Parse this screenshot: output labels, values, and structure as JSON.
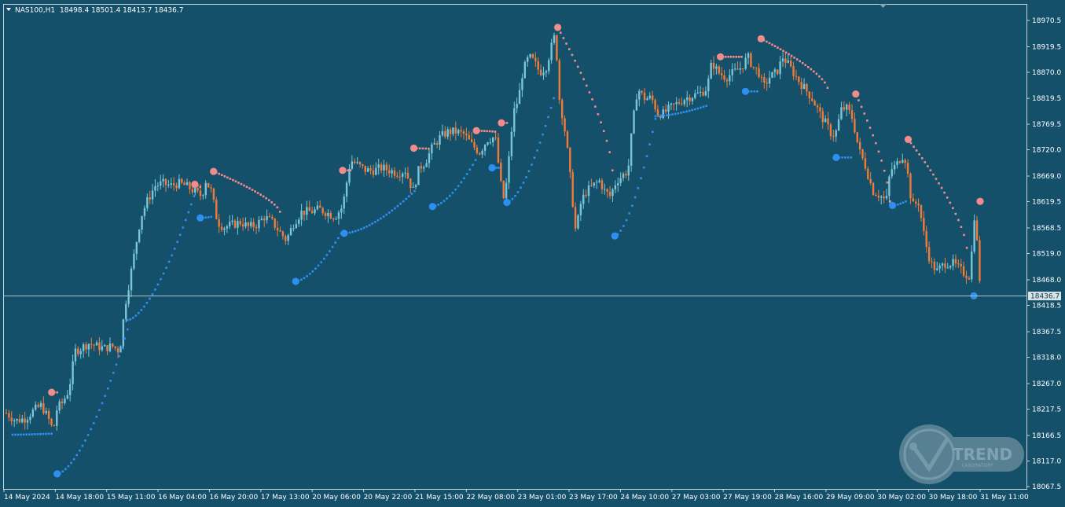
{
  "header": {
    "symbol": "NAS100,H1",
    "ohlc": "18498.4 18501.4 18413.7 18436.7"
  },
  "logo": {
    "main": "TREND",
    "sub": "LABORATORY"
  },
  "colors": {
    "background": "#14506a",
    "bull_candle": "#7ac6d8",
    "bear_candle": "#f27b3a",
    "sar_bull": "#2f8ff0",
    "sar_bear": "#f08c8c",
    "grid_text": "#ffffff",
    "price_line": "#a9c3cc",
    "price_tag_bg": "#d6e2e6"
  },
  "chart_data": {
    "type": "candlestick",
    "title": "NAS100,H1",
    "indicator": "Parabolic SAR",
    "ylim": [
      18067.5,
      18970.5
    ],
    "y_ticks": [
      "18970.5",
      "18919.5",
      "18870.0",
      "18819.5",
      "18769.5",
      "18720.0",
      "18669.0",
      "18619.5",
      "18568.5",
      "18519.0",
      "18468.0",
      "18418.5",
      "18367.5",
      "18318.0",
      "18267.0",
      "18217.5",
      "18166.5",
      "18117.0",
      "18067.5"
    ],
    "x_ticks": [
      "14 May 2024",
      "14 May 18:00",
      "15 May 11:00",
      "16 May 04:00",
      "16 May 20:00",
      "17 May 13:00",
      "20 May 06:00",
      "20 May 22:00",
      "21 May 15:00",
      "22 May 08:00",
      "23 May 01:00",
      "23 May 17:00",
      "24 May 10:00",
      "27 May 03:00",
      "27 May 19:00",
      "28 May 16:00",
      "29 May 09:00",
      "30 May 02:00",
      "30 May 18:00",
      "31 May 11:00"
    ],
    "current_price": "18436.7",
    "close_path": [
      [
        0,
        18210
      ],
      [
        12,
        18195
      ],
      [
        25,
        18200
      ],
      [
        35,
        18215
      ],
      [
        45,
        18225
      ],
      [
        55,
        18195
      ],
      [
        60,
        18175
      ],
      [
        65,
        18220
      ],
      [
        72,
        18230
      ],
      [
        80,
        18255
      ],
      [
        88,
        18330
      ],
      [
        95,
        18335
      ],
      [
        105,
        18345
      ],
      [
        115,
        18340
      ],
      [
        125,
        18335
      ],
      [
        135,
        18340
      ],
      [
        145,
        18330
      ],
      [
        152,
        18420
      ],
      [
        158,
        18470
      ],
      [
        165,
        18530
      ],
      [
        172,
        18590
      ],
      [
        180,
        18620
      ],
      [
        190,
        18650
      ],
      [
        200,
        18655
      ],
      [
        210,
        18650
      ],
      [
        220,
        18655
      ],
      [
        230,
        18650
      ],
      [
        240,
        18640
      ],
      [
        250,
        18630
      ],
      [
        255,
        18660
      ],
      [
        262,
        18640
      ],
      [
        270,
        18580
      ],
      [
        278,
        18570
      ],
      [
        290,
        18575
      ],
      [
        300,
        18580
      ],
      [
        310,
        18570
      ],
      [
        320,
        18575
      ],
      [
        330,
        18590
      ],
      [
        340,
        18580
      ],
      [
        350,
        18560
      ],
      [
        358,
        18545
      ],
      [
        368,
        18580
      ],
      [
        378,
        18600
      ],
      [
        390,
        18600
      ],
      [
        400,
        18605
      ],
      [
        410,
        18598
      ],
      [
        420,
        18590
      ],
      [
        430,
        18610
      ],
      [
        440,
        18700
      ],
      [
        450,
        18690
      ],
      [
        460,
        18680
      ],
      [
        470,
        18680
      ],
      [
        480,
        18685
      ],
      [
        490,
        18680
      ],
      [
        500,
        18675
      ],
      [
        510,
        18680
      ],
      [
        520,
        18640
      ],
      [
        528,
        18685
      ],
      [
        535,
        18695
      ],
      [
        545,
        18725
      ],
      [
        555,
        18745
      ],
      [
        565,
        18755
      ],
      [
        575,
        18755
      ],
      [
        585,
        18750
      ],
      [
        595,
        18730
      ],
      [
        605,
        18715
      ],
      [
        615,
        18740
      ],
      [
        625,
        18745
      ],
      [
        635,
        18620
      ],
      [
        640,
        18660
      ],
      [
        648,
        18790
      ],
      [
        655,
        18820
      ],
      [
        660,
        18870
      ],
      [
        668,
        18900
      ],
      [
        675,
        18890
      ],
      [
        682,
        18870
      ],
      [
        690,
        18880
      ],
      [
        697,
        18920
      ],
      [
        702,
        18945
      ],
      [
        707,
        18820
      ],
      [
        713,
        18770
      ],
      [
        718,
        18710
      ],
      [
        722,
        18650
      ],
      [
        728,
        18560
      ],
      [
        735,
        18620
      ],
      [
        742,
        18640
      ],
      [
        750,
        18650
      ],
      [
        758,
        18660
      ],
      [
        765,
        18640
      ],
      [
        772,
        18630
      ],
      [
        780,
        18660
      ],
      [
        788,
        18670
      ],
      [
        795,
        18680
      ],
      [
        800,
        18760
      ],
      [
        807,
        18840
      ],
      [
        815,
        18820
      ],
      [
        825,
        18820
      ],
      [
        833,
        18790
      ],
      [
        840,
        18790
      ],
      [
        848,
        18800
      ],
      [
        858,
        18810
      ],
      [
        868,
        18820
      ],
      [
        878,
        18825
      ],
      [
        888,
        18830
      ],
      [
        896,
        18840
      ],
      [
        902,
        18890
      ],
      [
        910,
        18870
      ],
      [
        920,
        18860
      ],
      [
        930,
        18870
      ],
      [
        940,
        18880
      ],
      [
        948,
        18900
      ],
      [
        955,
        18880
      ],
      [
        962,
        18870
      ],
      [
        968,
        18840
      ],
      [
        975,
        18860
      ],
      [
        985,
        18870
      ],
      [
        993,
        18900
      ],
      [
        1002,
        18880
      ],
      [
        1010,
        18860
      ],
      [
        1020,
        18840
      ],
      [
        1030,
        18820
      ],
      [
        1040,
        18790
      ],
      [
        1048,
        18770
      ],
      [
        1055,
        18750
      ],
      [
        1060,
        18750
      ],
      [
        1068,
        18800
      ],
      [
        1075,
        18800
      ],
      [
        1082,
        18780
      ],
      [
        1090,
        18720
      ],
      [
        1098,
        18690
      ],
      [
        1108,
        18640
      ],
      [
        1118,
        18630
      ],
      [
        1125,
        18620
      ],
      [
        1130,
        18680
      ],
      [
        1138,
        18690
      ],
      [
        1145,
        18710
      ],
      [
        1150,
        18700
      ],
      [
        1158,
        18610
      ],
      [
        1166,
        18620
      ],
      [
        1175,
        18540
      ],
      [
        1182,
        18500
      ],
      [
        1190,
        18485
      ],
      [
        1200,
        18500
      ],
      [
        1210,
        18500
      ],
      [
        1218,
        18490
      ],
      [
        1225,
        18480
      ],
      [
        1232,
        18475
      ],
      [
        1238,
        18600
      ],
      [
        1242,
        18520
      ],
      [
        1246,
        18436.7
      ]
    ],
    "sar_segments": [
      {
        "dir": "up",
        "start": [
          8,
          18168
        ],
        "end": [
          58,
          18170
        ],
        "start_big": false
      },
      {
        "dir": "down",
        "start": [
          58,
          18250
        ],
        "end": [
          65,
          18250
        ],
        "start_big": true
      },
      {
        "dir": "up",
        "start": [
          65,
          18092
        ],
        "end": [
          155,
          18372
        ],
        "start_big": true
      },
      {
        "dir": "up",
        "start": [
          155,
          18390
        ],
        "end": [
          240,
          18630
        ],
        "start_big": false
      },
      {
        "dir": "down",
        "start": [
          241,
          18653
        ],
        "end": [
          248,
          18648
        ],
        "start_big": true
      },
      {
        "dir": "up",
        "start": [
          248,
          18588
        ],
        "end": [
          262,
          18590
        ],
        "start_big": true
      },
      {
        "dir": "down",
        "start": [
          265,
          18678
        ],
        "end": [
          350,
          18600
        ],
        "start_big": true
      },
      {
        "dir": "up",
        "start": [
          370,
          18465
        ],
        "end": [
          428,
          18558
        ],
        "start_big": true
      },
      {
        "dir": "down",
        "start": [
          430,
          18680
        ],
        "end": [
          440,
          18680
        ],
        "start_big": true
      },
      {
        "dir": "up",
        "start": [
          432,
          18558
        ],
        "end": [
          522,
          18640
        ],
        "start_big": true
      },
      {
        "dir": "down",
        "start": [
          521,
          18723
        ],
        "end": [
          540,
          18722
        ],
        "start_big": true
      },
      {
        "dir": "up",
        "start": [
          545,
          18610
        ],
        "end": [
          600,
          18700
        ],
        "start_big": true
      },
      {
        "dir": "down",
        "start": [
          601,
          18757
        ],
        "end": [
          625,
          18755
        ],
        "start_big": true
      },
      {
        "dir": "up",
        "start": [
          621,
          18685
        ],
        "end": [
          630,
          18685
        ],
        "start_big": true
      },
      {
        "dir": "down",
        "start": [
          633,
          18772
        ],
        "end": [
          640,
          18772
        ],
        "start_big": true
      },
      {
        "dir": "up",
        "start": [
          640,
          18618
        ],
        "end": [
          700,
          18820
        ],
        "start_big": true
      },
      {
        "dir": "down",
        "start": [
          705,
          18957
        ],
        "end": [
          775,
          18680
        ],
        "start_big": true
      },
      {
        "dir": "up",
        "start": [
          778,
          18553
        ],
        "end": [
          830,
          18780
        ],
        "start_big": true
      },
      {
        "dir": "up",
        "start": [
          830,
          18785
        ],
        "end": [
          895,
          18805
        ],
        "start_big": false
      },
      {
        "dir": "down",
        "start": [
          913,
          18900
        ],
        "end": [
          940,
          18900
        ],
        "start_big": true
      },
      {
        "dir": "up",
        "start": [
          945,
          18833
        ],
        "end": [
          960,
          18833
        ],
        "start_big": true
      },
      {
        "dir": "down",
        "start": [
          965,
          18935
        ],
        "end": [
          1050,
          18840
        ],
        "start_big": true
      },
      {
        "dir": "up",
        "start": [
          1061,
          18705
        ],
        "end": [
          1080,
          18705
        ],
        "start_big": true
      },
      {
        "dir": "down",
        "start": [
          1086,
          18828
        ],
        "end": [
          1130,
          18620
        ],
        "start_big": true
      },
      {
        "dir": "up",
        "start": [
          1133,
          18612
        ],
        "end": [
          1150,
          18620
        ],
        "start_big": true
      },
      {
        "dir": "down",
        "start": [
          1153,
          18740
        ],
        "end": [
          1228,
          18530
        ],
        "start_big": true
      },
      {
        "dir": "up",
        "start": [
          1237,
          18437
        ],
        "end": [
          1240,
          18437
        ],
        "start_big": true
      },
      {
        "dir": "down",
        "start": [
          1245,
          18620
        ],
        "end": [
          1248,
          18620
        ],
        "start_big": true
      }
    ]
  }
}
